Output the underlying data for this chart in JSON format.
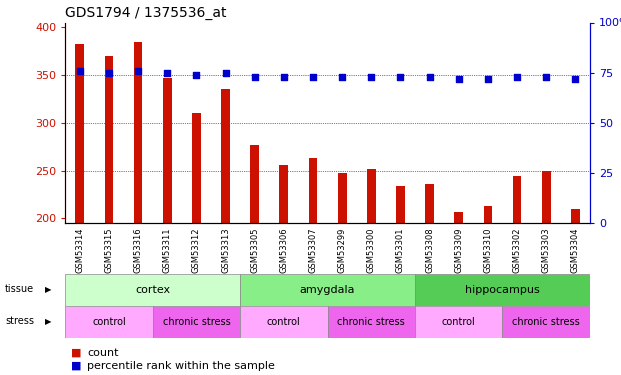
{
  "title": "GDS1794 / 1375536_at",
  "samples": [
    "GSM53314",
    "GSM53315",
    "GSM53316",
    "GSM53311",
    "GSM53312",
    "GSM53313",
    "GSM53305",
    "GSM53306",
    "GSM53307",
    "GSM53299",
    "GSM53300",
    "GSM53301",
    "GSM53308",
    "GSM53309",
    "GSM53310",
    "GSM53302",
    "GSM53303",
    "GSM53304"
  ],
  "counts": [
    383,
    370,
    385,
    347,
    310,
    335,
    277,
    256,
    263,
    247,
    252,
    234,
    236,
    207,
    213,
    244,
    250,
    210
  ],
  "percentiles": [
    76,
    75,
    76,
    75,
    74,
    75,
    73,
    73,
    73,
    73,
    73,
    73,
    73,
    72,
    72,
    73,
    73,
    72
  ],
  "bar_color": "#cc1100",
  "dot_color": "#0000cc",
  "ylim_left": [
    195,
    405
  ],
  "ylim_right": [
    0,
    100
  ],
  "yticks_left": [
    200,
    250,
    300,
    350,
    400
  ],
  "yticks_right": [
    0,
    25,
    50,
    75,
    100
  ],
  "tissue_groups": [
    {
      "label": "cortex",
      "start": 0,
      "end": 6,
      "color": "#ccffcc"
    },
    {
      "label": "amygdala",
      "start": 6,
      "end": 12,
      "color": "#88ee88"
    },
    {
      "label": "hippocampus",
      "start": 12,
      "end": 18,
      "color": "#55cc55"
    }
  ],
  "stress_groups": [
    {
      "label": "control",
      "start": 0,
      "end": 3,
      "color": "#ffaaff"
    },
    {
      "label": "chronic stress",
      "start": 3,
      "end": 6,
      "color": "#ee66ee"
    },
    {
      "label": "control",
      "start": 6,
      "end": 9,
      "color": "#ffaaff"
    },
    {
      "label": "chronic stress",
      "start": 9,
      "end": 12,
      "color": "#ee66ee"
    },
    {
      "label": "control",
      "start": 12,
      "end": 15,
      "color": "#ffaaff"
    },
    {
      "label": "chronic stress",
      "start": 15,
      "end": 18,
      "color": "#ee66ee"
    }
  ],
  "bar_width": 0.3,
  "tick_label_color": "#cc1100",
  "right_tick_color": "#0000cc",
  "title_fontsize": 10,
  "axis_fontsize": 8,
  "legend_fontsize": 8,
  "sample_fontsize": 6.0,
  "tissue_fontsize": 8,
  "stress_fontsize": 7
}
